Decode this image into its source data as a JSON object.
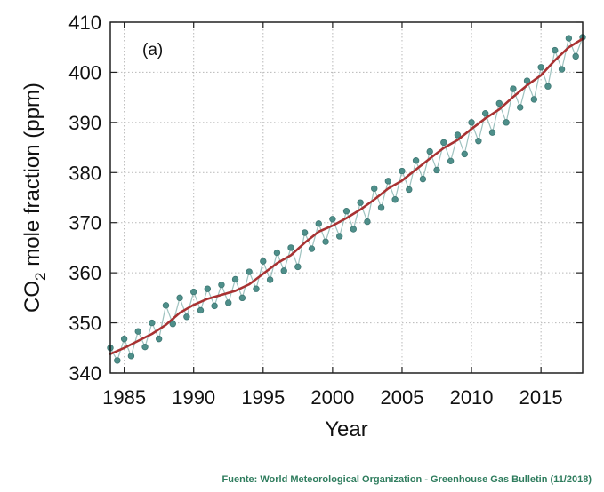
{
  "chart_data": {
    "type": "line",
    "panel_label": "(a)",
    "xlabel": "Year",
    "ylabel_parts": {
      "co": "CO",
      "sub": "2",
      "rest": " mole fraction (ppm)"
    },
    "xlim": [
      1984.0,
      2018.0
    ],
    "ylim": [
      340,
      410
    ],
    "x_ticks": [
      1985,
      1990,
      1995,
      2000,
      2005,
      2010,
      2015
    ],
    "y_ticks": [
      340,
      350,
      360,
      370,
      380,
      390,
      400,
      410
    ],
    "grid": true,
    "series": [
      {
        "role": "monthly_mean",
        "style": "points",
        "color": "#4e8f8a",
        "x": [
          1984.0,
          1984.5,
          1985.0,
          1985.5,
          1986.0,
          1986.5,
          1987.0,
          1987.5,
          1988.0,
          1988.5,
          1989.0,
          1989.5,
          1990.0,
          1990.5,
          1991.0,
          1991.5,
          1992.0,
          1992.5,
          1993.0,
          1993.5,
          1994.0,
          1994.5,
          1995.0,
          1995.5,
          1996.0,
          1996.5,
          1997.0,
          1997.5,
          1998.0,
          1998.5,
          1999.0,
          1999.5,
          2000.0,
          2000.5,
          2001.0,
          2001.5,
          2002.0,
          2002.5,
          2003.0,
          2003.5,
          2004.0,
          2004.5,
          2005.0,
          2005.5,
          2006.0,
          2006.5,
          2007.0,
          2007.5,
          2008.0,
          2008.5,
          2009.0,
          2009.5,
          2010.0,
          2010.5,
          2011.0,
          2011.5,
          2012.0,
          2012.5,
          2013.0,
          2013.5,
          2014.0,
          2014.5,
          2015.0,
          2015.5,
          2016.0,
          2016.5,
          2017.0,
          2017.5,
          2018.0
        ],
        "y": [
          345.0,
          342.5,
          346.8,
          343.4,
          348.3,
          345.2,
          350.0,
          346.8,
          353.5,
          349.8,
          355.0,
          351.2,
          356.2,
          352.5,
          356.8,
          353.4,
          357.6,
          354.0,
          358.7,
          355.0,
          360.2,
          356.8,
          362.3,
          358.6,
          364.0,
          360.4,
          365.0,
          361.2,
          368.0,
          364.8,
          369.8,
          366.2,
          370.7,
          367.3,
          372.3,
          368.7,
          374.0,
          370.2,
          376.8,
          373.0,
          378.3,
          374.6,
          380.3,
          376.6,
          382.4,
          378.7,
          384.2,
          380.5,
          386.0,
          382.3,
          387.5,
          383.7,
          390.0,
          386.3,
          391.8,
          388.0,
          393.8,
          390.0,
          396.7,
          393.0,
          398.3,
          394.6,
          401.0,
          397.2,
          404.4,
          400.6,
          406.8,
          403.2,
          407.0
        ]
      },
      {
        "role": "deseasonalized_trend",
        "style": "line",
        "color": "#a83232",
        "x": [
          1984.0,
          1985.0,
          1986.0,
          1987.0,
          1988.0,
          1989.0,
          1990.0,
          1991.0,
          1992.0,
          1993.0,
          1994.0,
          1995.0,
          1996.0,
          1997.0,
          1998.0,
          1999.0,
          2000.0,
          2001.0,
          2002.0,
          2003.0,
          2004.0,
          2005.0,
          2006.0,
          2007.0,
          2008.0,
          2009.0,
          2010.0,
          2011.0,
          2012.0,
          2013.0,
          2014.0,
          2015.0,
          2016.0,
          2017.0,
          2018.0
        ],
        "y": [
          343.8,
          345.0,
          346.4,
          347.8,
          349.6,
          352.0,
          353.6,
          354.8,
          355.6,
          356.4,
          357.7,
          359.8,
          361.9,
          363.5,
          366.0,
          368.2,
          369.4,
          370.9,
          372.6,
          374.6,
          376.8,
          378.4,
          380.6,
          382.8,
          384.9,
          386.5,
          388.7,
          390.8,
          392.6,
          395.1,
          397.4,
          399.4,
          402.4,
          405.0,
          406.7
        ]
      }
    ]
  },
  "source": {
    "prefix": "Fuente:",
    "text": "World Meteorological Organization - Greenhouse Gas Bulletin (11/2018)"
  }
}
